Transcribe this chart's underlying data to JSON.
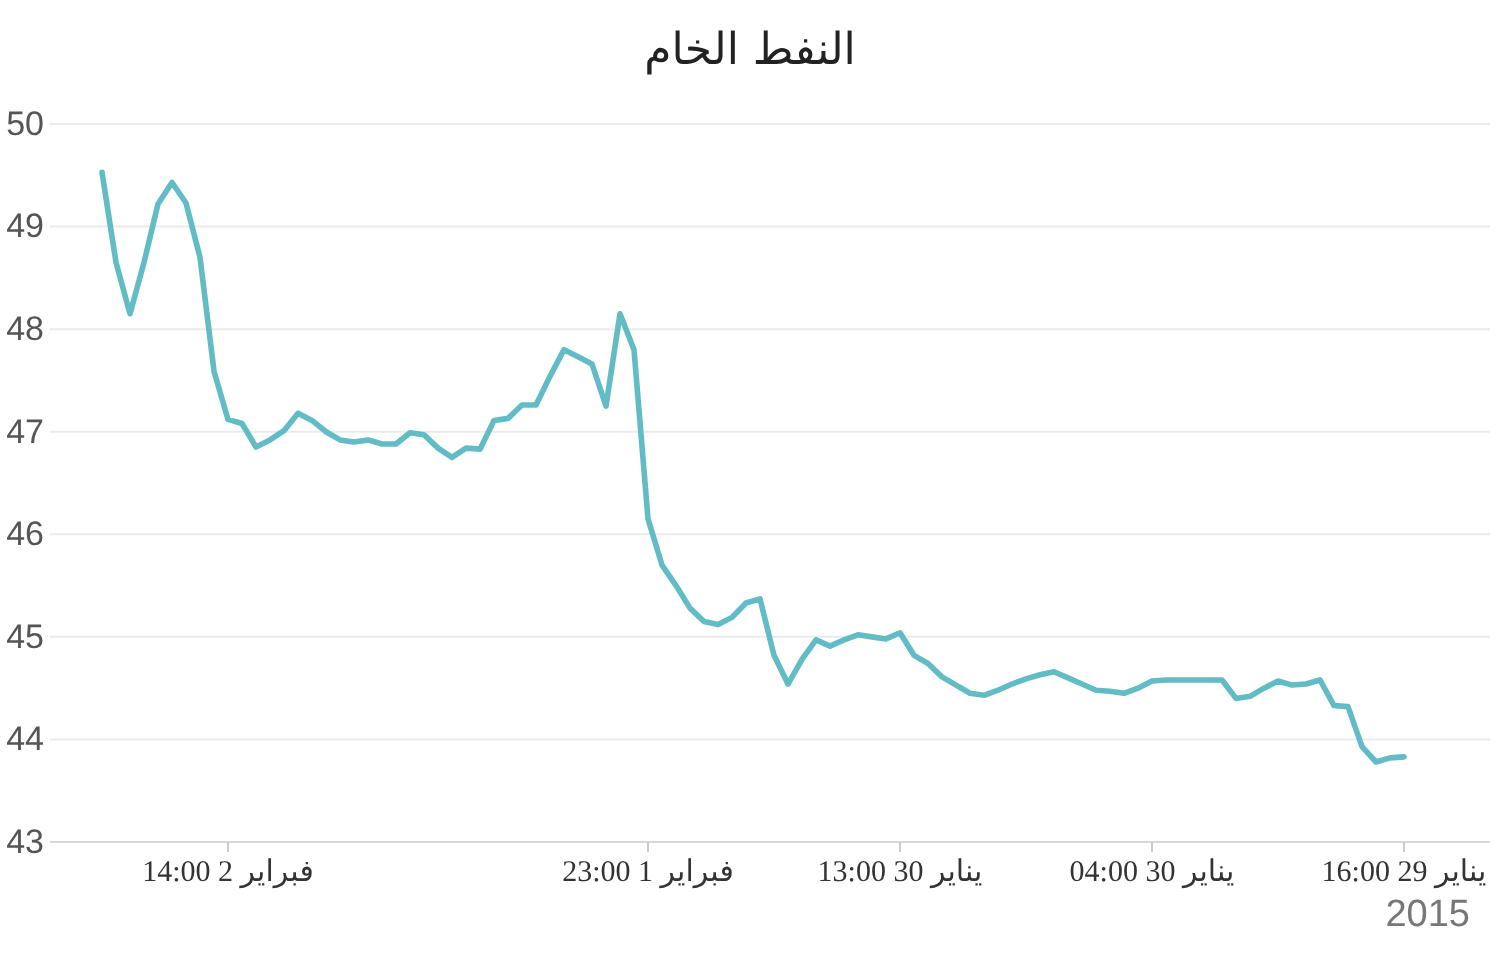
{
  "chart_data": {
    "type": "line",
    "title": "النفط الخام",
    "xlabel": "2015",
    "categories": [
      null,
      null,
      null,
      null,
      null,
      null,
      null,
      null,
      null,
      "14:00 2 فبراير",
      null,
      null,
      null,
      null,
      null,
      null,
      null,
      null,
      null,
      null,
      null,
      null,
      null,
      null,
      null,
      null,
      null,
      null,
      null,
      null,
      null,
      null,
      null,
      null,
      null,
      null,
      null,
      null,
      null,
      "23:00 1 فبراير",
      null,
      null,
      null,
      null,
      null,
      null,
      null,
      null,
      null,
      null,
      null,
      null,
      null,
      null,
      null,
      null,
      null,
      "13:00 30 يناير",
      null,
      null,
      null,
      null,
      null,
      null,
      null,
      null,
      null,
      null,
      null,
      null,
      null,
      null,
      null,
      null,
      null,
      "04:00 30 يناير",
      null,
      null,
      null,
      null,
      null,
      null,
      null,
      null,
      null,
      null,
      null,
      null,
      null,
      null,
      null,
      null,
      null,
      "16:00 29 يناير"
    ],
    "series": [
      {
        "color": "#62bcc5",
        "values": [
          49.53,
          48.65,
          48.15,
          48.65,
          49.22,
          49.43,
          49.23,
          48.7,
          47.59,
          47.12,
          47.08,
          46.85,
          46.92,
          47.01,
          47.18,
          47.11,
          47.0,
          46.92,
          46.9,
          46.92,
          46.88,
          46.88,
          46.99,
          46.97,
          46.84,
          46.75,
          46.84,
          46.83,
          47.11,
          47.13,
          47.26,
          47.26,
          47.54,
          47.8,
          47.73,
          47.66,
          47.25,
          48.15,
          47.8,
          46.15,
          45.7,
          45.5,
          45.28,
          45.15,
          45.12,
          45.19,
          45.33,
          45.37,
          44.82,
          44.54,
          44.78,
          44.97,
          44.91,
          44.97,
          45.02,
          45.0,
          44.98,
          45.04,
          44.82,
          44.74,
          44.61,
          44.53,
          44.45,
          44.43,
          44.48,
          44.54,
          44.59,
          44.63,
          44.66,
          44.6,
          44.54,
          44.48,
          44.47,
          44.45,
          44.5,
          44.57,
          44.58,
          44.58,
          44.58,
          44.58,
          44.58,
          44.4,
          44.42,
          44.5,
          44.57,
          44.53,
          44.54,
          44.58,
          44.33,
          44.32,
          43.93,
          43.78,
          43.82,
          43.83
        ]
      }
    ],
    "ylim": [
      43,
      50
    ],
    "yticks": [
      43,
      44,
      45,
      46,
      47,
      48,
      49,
      50
    ],
    "grid": "y",
    "line_style": "solid"
  }
}
